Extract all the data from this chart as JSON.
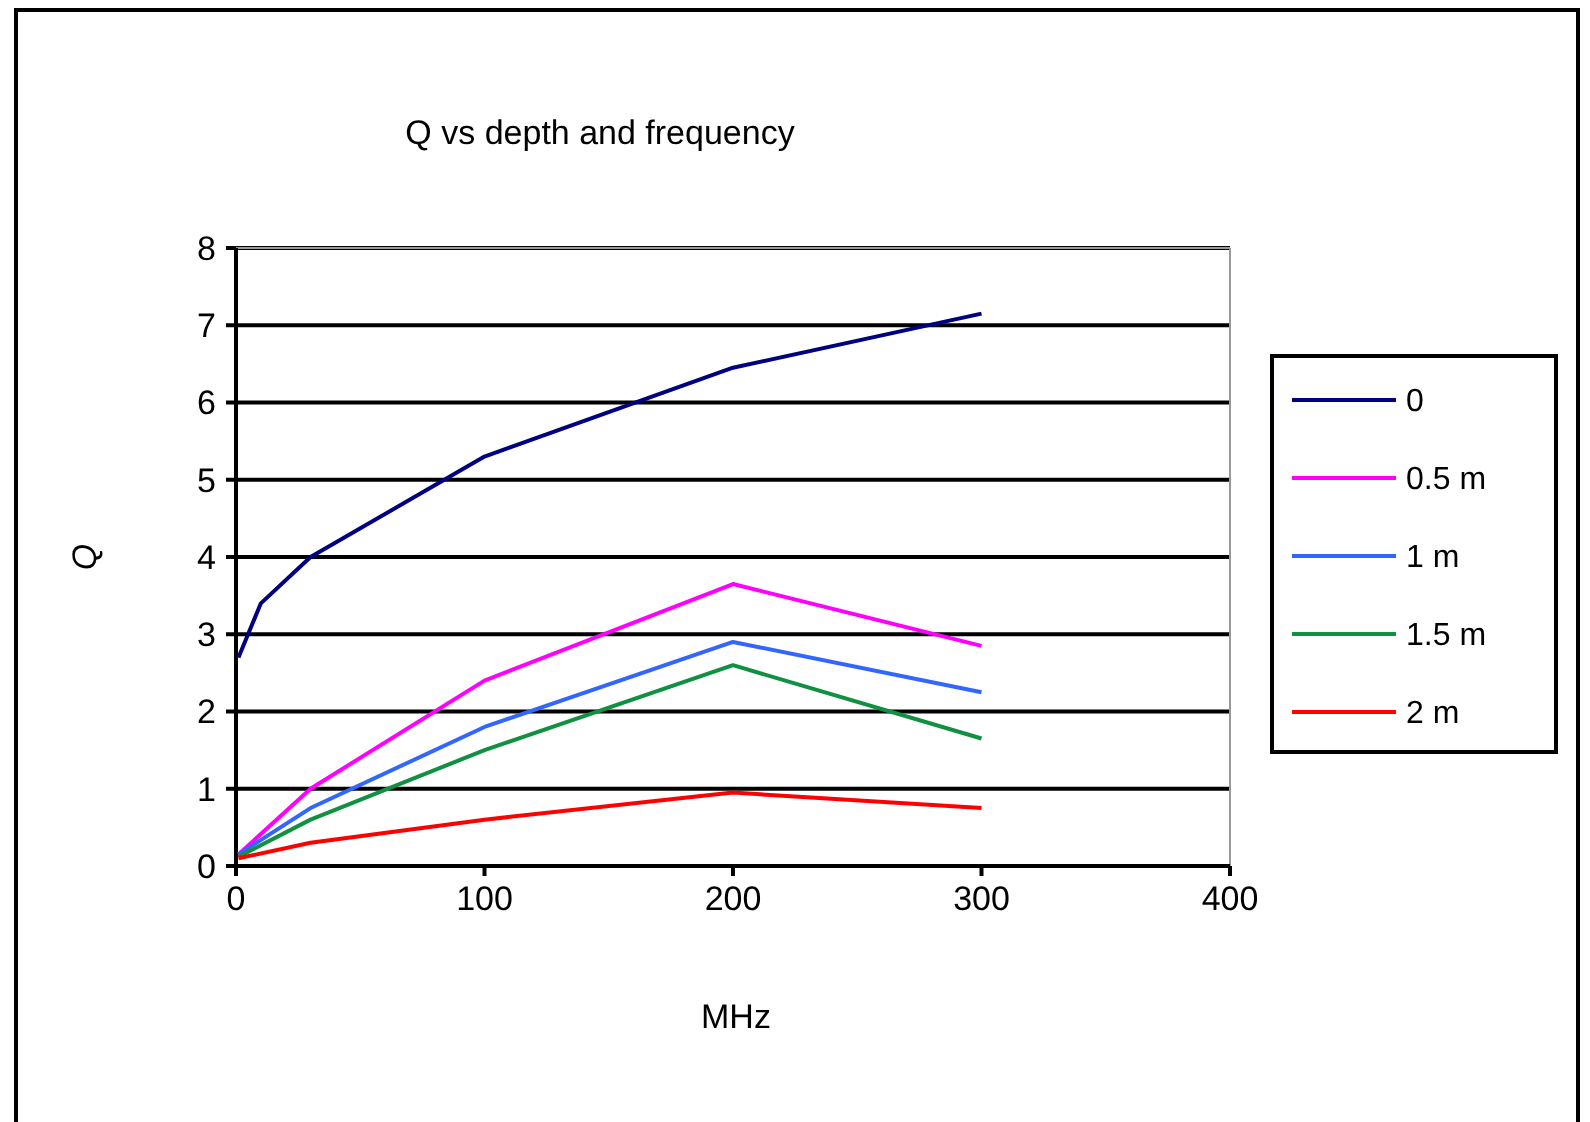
{
  "chart_data": {
    "type": "line",
    "title": "Q vs depth and frequency",
    "xlabel": "MHz",
    "ylabel": "Q",
    "xlim": [
      0,
      400
    ],
    "xticks": [
      0,
      100,
      200,
      300,
      400
    ],
    "ylim": [
      0,
      8
    ],
    "yticks": [
      0,
      1,
      2,
      3,
      4,
      5,
      6,
      7,
      8
    ],
    "grid": "y",
    "legend": "right",
    "marker": "none",
    "line_style": "solid",
    "series": [
      {
        "name": "0",
        "color": "#000080",
        "x": [
          1,
          10,
          30,
          100,
          200,
          300
        ],
        "values": [
          2.7,
          3.4,
          4.0,
          5.3,
          6.45,
          7.15
        ]
      },
      {
        "name": "0.5 m",
        "color": "#ff00ff",
        "x": [
          1,
          30,
          100,
          200,
          300
        ],
        "values": [
          0.15,
          1.0,
          2.4,
          3.65,
          2.85
        ]
      },
      {
        "name": "1 m",
        "color": "#3366ff",
        "x": [
          1,
          30,
          100,
          200,
          300
        ],
        "values": [
          0.15,
          0.75,
          1.8,
          2.9,
          2.25
        ]
      },
      {
        "name": "1.5 m",
        "color": "#109040",
        "x": [
          1,
          30,
          100,
          200,
          300
        ],
        "values": [
          0.12,
          0.6,
          1.5,
          2.6,
          1.65
        ]
      },
      {
        "name": "2 m",
        "color": "#ff0000",
        "x": [
          1,
          30,
          100,
          200,
          300
        ],
        "values": [
          0.1,
          0.3,
          0.6,
          0.95,
          0.75
        ]
      }
    ]
  }
}
